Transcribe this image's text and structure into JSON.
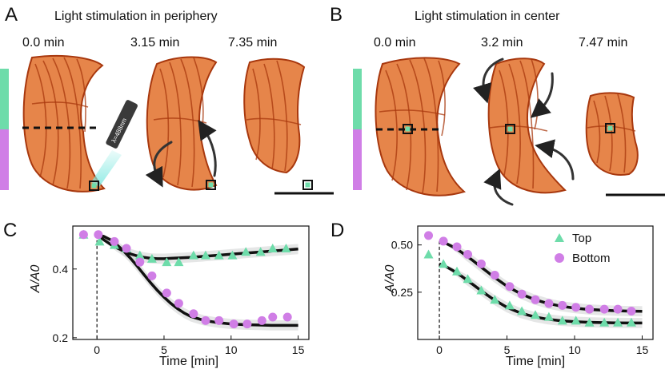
{
  "panels": {
    "A": {
      "letter": "A",
      "title": "Light stimulation in periphery",
      "times": [
        "0.0 min",
        "3.15 min",
        "7.35 min"
      ],
      "laser_label": "λ=488nm"
    },
    "B": {
      "letter": "B",
      "title": "Light stimulation in center",
      "times": [
        "0.0 min",
        "3.2 min",
        "7.47 min"
      ]
    }
  },
  "colors": {
    "top": "#6edcaa",
    "bottom": "#d07ee6",
    "tissue": "#e2702a",
    "tissue_dark": "#a8380e",
    "fit": "#111111",
    "band": "#cfd2d2"
  },
  "chart_data": [
    {
      "panel": "C",
      "type": "scatter",
      "xlabel": "Time [min]",
      "ylabel": "A/A0",
      "xlim": [
        -1.8,
        15.8
      ],
      "ylim": [
        0.195,
        0.525
      ],
      "xticks": [
        0,
        5,
        10,
        15
      ],
      "yticks": [
        0.2,
        0.4
      ],
      "ytick_labels": [
        "0.2",
        "0.4"
      ],
      "legend": false,
      "stimulus_time": 0,
      "series": [
        {
          "name": "Top",
          "marker": "triangle",
          "x": [
            -1,
            0.2,
            1.3,
            2.2,
            3.2,
            4.1,
            5.2,
            6.1,
            7.2,
            8.1,
            9.1,
            10.1,
            11.1,
            12.2,
            13.1,
            14.1
          ],
          "y": [
            0.5,
            0.48,
            0.47,
            0.46,
            0.44,
            0.43,
            0.42,
            0.42,
            0.44,
            0.44,
            0.44,
            0.44,
            0.45,
            0.45,
            0.46,
            0.46
          ],
          "fit_x": [
            0,
            0.5,
            1,
            1.5,
            2,
            2.5,
            3,
            3.5,
            4,
            4.5,
            5,
            5.5,
            6,
            6.5,
            7,
            8,
            9,
            10,
            11,
            12,
            13,
            14,
            15
          ],
          "fit_y": [
            0.5,
            0.485,
            0.472,
            0.461,
            0.452,
            0.444,
            0.438,
            0.434,
            0.431,
            0.43,
            0.43,
            0.431,
            0.432,
            0.433,
            0.434,
            0.437,
            0.44,
            0.443,
            0.446,
            0.449,
            0.452,
            0.455,
            0.458
          ]
        },
        {
          "name": "Bottom",
          "marker": "circle",
          "x": [
            -1,
            0.1,
            1.3,
            2.2,
            3.2,
            4.1,
            5.2,
            6.1,
            7.2,
            8.1,
            9.1,
            10.2,
            11.2,
            12.3,
            13.1,
            14.2
          ],
          "y": [
            0.5,
            0.5,
            0.48,
            0.46,
            0.42,
            0.38,
            0.33,
            0.3,
            0.27,
            0.25,
            0.25,
            0.24,
            0.24,
            0.25,
            0.26,
            0.26
          ],
          "fit_x": [
            0,
            0.5,
            1,
            1.5,
            2,
            2.5,
            3,
            3.5,
            4,
            4.5,
            5,
            5.5,
            6,
            6.5,
            7,
            8,
            9,
            10,
            11,
            12,
            13,
            14,
            15
          ],
          "fit_y": [
            0.5,
            0.495,
            0.485,
            0.47,
            0.452,
            0.431,
            0.408,
            0.384,
            0.36,
            0.338,
            0.318,
            0.3,
            0.285,
            0.272,
            0.262,
            0.25,
            0.244,
            0.24,
            0.238,
            0.237,
            0.236,
            0.236,
            0.236
          ]
        }
      ]
    },
    {
      "panel": "D",
      "type": "scatter",
      "xlabel": "Time [min]",
      "ylabel": "A/A0",
      "xlim": [
        -1.6,
        15.8
      ],
      "ylim": [
        0.0,
        0.6
      ],
      "xticks": [
        0,
        5,
        10,
        15
      ],
      "yticks": [
        0.25,
        0.5
      ],
      "ytick_labels": [
        "0.25",
        "0.50"
      ],
      "legend": true,
      "legend_position": "top-right",
      "stimulus_time": 0,
      "series": [
        {
          "name": "Top",
          "marker": "triangle",
          "x": [
            -0.8,
            0.3,
            1.3,
            2.1,
            3.1,
            4.1,
            5.2,
            6.1,
            7.1,
            8.1,
            9.1,
            10.1,
            11.1,
            12.2,
            13.2,
            14.2
          ],
          "y": [
            0.45,
            0.4,
            0.36,
            0.32,
            0.26,
            0.21,
            0.18,
            0.15,
            0.13,
            0.12,
            0.1,
            0.1,
            0.09,
            0.09,
            0.09,
            0.09
          ],
          "fit_x": [
            0,
            0.5,
            1,
            1.5,
            2,
            2.5,
            3,
            3.5,
            4,
            5,
            6,
            7,
            8,
            9,
            10,
            11,
            12,
            13,
            14,
            15
          ],
          "fit_y": [
            0.4,
            0.385,
            0.365,
            0.342,
            0.316,
            0.29,
            0.263,
            0.237,
            0.212,
            0.17,
            0.14,
            0.12,
            0.107,
            0.099,
            0.094,
            0.091,
            0.089,
            0.088,
            0.087,
            0.087
          ]
        },
        {
          "name": "Bottom",
          "marker": "circle",
          "x": [
            -0.8,
            0.3,
            1.3,
            2.1,
            3.1,
            4.1,
            5.2,
            6.1,
            7.1,
            8.1,
            9.1,
            10.1,
            11.1,
            12.2,
            13.2,
            14.2
          ],
          "y": [
            0.55,
            0.52,
            0.49,
            0.45,
            0.4,
            0.34,
            0.28,
            0.24,
            0.21,
            0.19,
            0.18,
            0.17,
            0.16,
            0.16,
            0.16,
            0.15
          ],
          "fit_x": [
            0,
            0.5,
            1,
            1.5,
            2,
            2.5,
            3,
            3.5,
            4,
            5,
            6,
            7,
            8,
            9,
            10,
            11,
            12,
            13,
            14,
            15
          ],
          "fit_y": [
            0.52,
            0.508,
            0.49,
            0.468,
            0.443,
            0.416,
            0.388,
            0.36,
            0.332,
            0.282,
            0.242,
            0.212,
            0.191,
            0.176,
            0.166,
            0.159,
            0.155,
            0.152,
            0.15,
            0.149
          ]
        }
      ]
    }
  ]
}
